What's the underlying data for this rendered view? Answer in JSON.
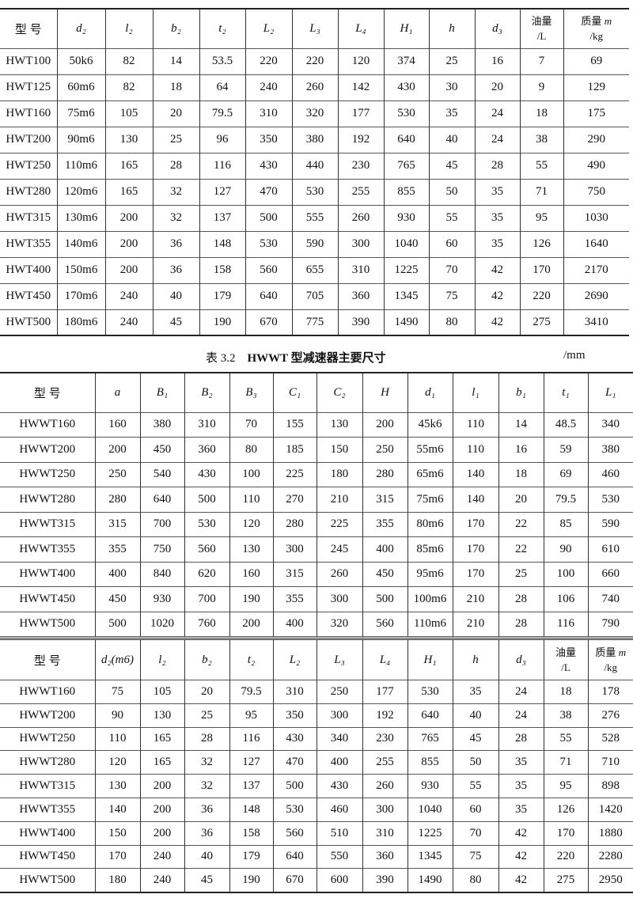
{
  "table1": {
    "headers": [
      "型 号",
      "d₂",
      "l₂",
      "b₂",
      "t₂",
      "L₂",
      "L₃",
      "L₄",
      "H₁",
      "h",
      "d₃",
      "油量\n/L",
      "质量 m\n/kg"
    ],
    "rows": [
      [
        "HWT100",
        "50k6",
        "82",
        "14",
        "53.5",
        "220",
        "220",
        "120",
        "374",
        "25",
        "16",
        "7",
        "69"
      ],
      [
        "HWT125",
        "60m6",
        "82",
        "18",
        "64",
        "240",
        "260",
        "142",
        "430",
        "30",
        "20",
        "9",
        "129"
      ],
      [
        "HWT160",
        "75m6",
        "105",
        "20",
        "79.5",
        "310",
        "320",
        "177",
        "530",
        "35",
        "24",
        "18",
        "175"
      ],
      [
        "HWT200",
        "90m6",
        "130",
        "25",
        "96",
        "350",
        "380",
        "192",
        "640",
        "40",
        "24",
        "38",
        "290"
      ],
      [
        "HWT250",
        "110m6",
        "165",
        "28",
        "116",
        "430",
        "440",
        "230",
        "765",
        "45",
        "28",
        "55",
        "490"
      ],
      [
        "HWT280",
        "120m6",
        "165",
        "32",
        "127",
        "470",
        "530",
        "255",
        "855",
        "50",
        "35",
        "71",
        "750"
      ],
      [
        "HWT315",
        "130m6",
        "200",
        "32",
        "137",
        "500",
        "555",
        "260",
        "930",
        "55",
        "35",
        "95",
        "1030"
      ],
      [
        "HWT355",
        "140m6",
        "200",
        "36",
        "148",
        "530",
        "590",
        "300",
        "1040",
        "60",
        "35",
        "126",
        "1640"
      ],
      [
        "HWT400",
        "150m6",
        "200",
        "36",
        "158",
        "560",
        "655",
        "310",
        "1225",
        "70",
        "42",
        "170",
        "2170"
      ],
      [
        "HWT450",
        "170m6",
        "240",
        "40",
        "179",
        "640",
        "705",
        "360",
        "1345",
        "75",
        "42",
        "220",
        "2690"
      ],
      [
        "HWT500",
        "180m6",
        "240",
        "45",
        "190",
        "670",
        "775",
        "390",
        "1490",
        "80",
        "42",
        "275",
        "3410"
      ]
    ]
  },
  "caption": {
    "label": "表 3.2",
    "title": "HWWT 型减速器主要尺寸",
    "unit": "/mm"
  },
  "table2": {
    "headers": [
      "型 号",
      "a",
      "B₁",
      "B₂",
      "B₃",
      "C₁",
      "C₂",
      "H",
      "d₁",
      "l₁",
      "b₁",
      "t₁",
      "L₁"
    ],
    "rows": [
      [
        "HWWT160",
        "160",
        "380",
        "310",
        "70",
        "155",
        "130",
        "200",
        "45k6",
        "110",
        "14",
        "48.5",
        "340"
      ],
      [
        "HWWT200",
        "200",
        "450",
        "360",
        "80",
        "185",
        "150",
        "250",
        "55m6",
        "110",
        "16",
        "59",
        "380"
      ],
      [
        "HWWT250",
        "250",
        "540",
        "430",
        "100",
        "225",
        "180",
        "280",
        "65m6",
        "140",
        "18",
        "69",
        "460"
      ],
      [
        "HWWT280",
        "280",
        "640",
        "500",
        "110",
        "270",
        "210",
        "315",
        "75m6",
        "140",
        "20",
        "79.5",
        "530"
      ],
      [
        "HWWT315",
        "315",
        "700",
        "530",
        "120",
        "280",
        "225",
        "355",
        "80m6",
        "170",
        "22",
        "85",
        "590"
      ],
      [
        "HWWT355",
        "355",
        "750",
        "560",
        "130",
        "300",
        "245",
        "400",
        "85m6",
        "170",
        "22",
        "90",
        "610"
      ],
      [
        "HWWT400",
        "400",
        "840",
        "620",
        "160",
        "315",
        "260",
        "450",
        "95m6",
        "170",
        "25",
        "100",
        "660"
      ],
      [
        "HWWT450",
        "450",
        "930",
        "700",
        "190",
        "355",
        "300",
        "500",
        "100m6",
        "210",
        "28",
        "106",
        "740"
      ],
      [
        "HWWT500",
        "500",
        "1020",
        "760",
        "200",
        "400",
        "320",
        "560",
        "110m6",
        "210",
        "28",
        "116",
        "790"
      ]
    ]
  },
  "table3": {
    "headers": [
      "型 号",
      "d₂(m6)",
      "l₂",
      "b₂",
      "t₂",
      "L₂",
      "L₃",
      "L₄",
      "H₁",
      "h",
      "d₃",
      "油量\n/L",
      "质量 m\n/kg"
    ],
    "rows": [
      [
        "HWWT160",
        "75",
        "105",
        "20",
        "79.5",
        "310",
        "250",
        "177",
        "530",
        "35",
        "24",
        "18",
        "178"
      ],
      [
        "HWWT200",
        "90",
        "130",
        "25",
        "95",
        "350",
        "300",
        "192",
        "640",
        "40",
        "24",
        "38",
        "276"
      ],
      [
        "HWWT250",
        "110",
        "165",
        "28",
        "116",
        "430",
        "340",
        "230",
        "765",
        "45",
        "28",
        "55",
        "528"
      ],
      [
        "HWWT280",
        "120",
        "165",
        "32",
        "127",
        "470",
        "400",
        "255",
        "855",
        "50",
        "35",
        "71",
        "710"
      ],
      [
        "HWWT315",
        "130",
        "200",
        "32",
        "137",
        "500",
        "430",
        "260",
        "930",
        "55",
        "35",
        "95",
        "898"
      ],
      [
        "HWWT355",
        "140",
        "200",
        "36",
        "148",
        "530",
        "460",
        "300",
        "1040",
        "60",
        "35",
        "126",
        "1420"
      ],
      [
        "HWWT400",
        "150",
        "200",
        "36",
        "158",
        "560",
        "510",
        "310",
        "1225",
        "70",
        "42",
        "170",
        "1880"
      ],
      [
        "HWWT450",
        "170",
        "240",
        "40",
        "179",
        "640",
        "550",
        "360",
        "1345",
        "75",
        "42",
        "220",
        "2280"
      ],
      [
        "HWWT500",
        "180",
        "240",
        "45",
        "190",
        "670",
        "600",
        "390",
        "1490",
        "80",
        "42",
        "275",
        "2950"
      ]
    ]
  }
}
